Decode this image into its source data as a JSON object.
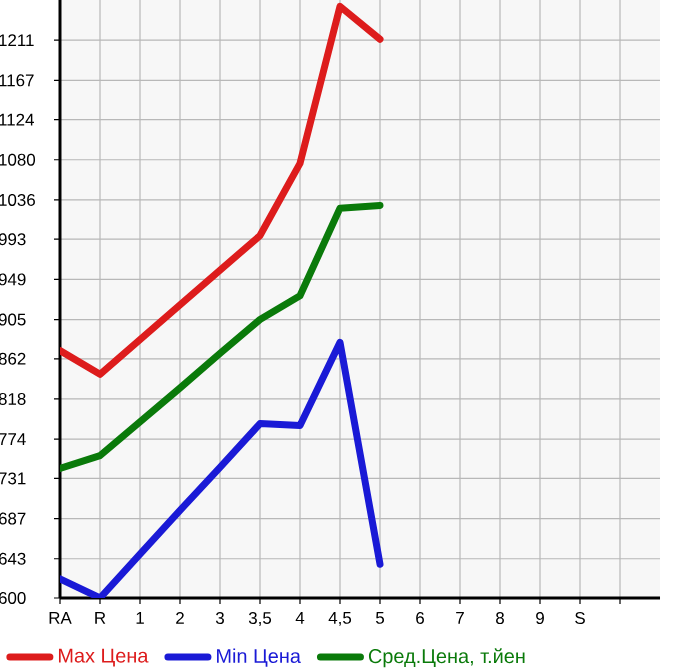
{
  "chart_data": {
    "type": "line",
    "categories": [
      "RA",
      "R",
      "1",
      "2",
      "3",
      "3,5",
      "4",
      "4,5",
      "5",
      "6",
      "7",
      "8",
      "9",
      "S",
      null
    ],
    "series": [
      {
        "name": "Max Цена",
        "color": "#dd1c1c",
        "values": [
          871,
          845,
          883,
          921,
          959,
          997,
          1076,
          1248,
          1212,
          null,
          null,
          null,
          null,
          null,
          null
        ]
      },
      {
        "name": "Min Цена",
        "color": "#1a1ad6",
        "values": [
          621,
          600,
          648,
          696,
          743,
          791,
          789,
          880,
          637,
          null,
          null,
          null,
          null,
          null,
          null
        ]
      },
      {
        "name": "Сред.Цена, т.йен",
        "color": "#0a7a0a",
        "values": [
          742,
          756,
          793,
          830,
          868,
          905,
          931,
          1027,
          1030,
          null,
          null,
          null,
          null,
          null,
          null
        ]
      }
    ],
    "ylim": [
      600,
      1255
    ],
    "yticks": [
      600,
      643,
      687,
      731,
      774,
      818,
      862,
      905,
      949,
      993,
      1036,
      1080,
      1124,
      1167,
      1211
    ],
    "grid": true,
    "legend": "bottom",
    "marker": "none",
    "line_style": "solid"
  }
}
